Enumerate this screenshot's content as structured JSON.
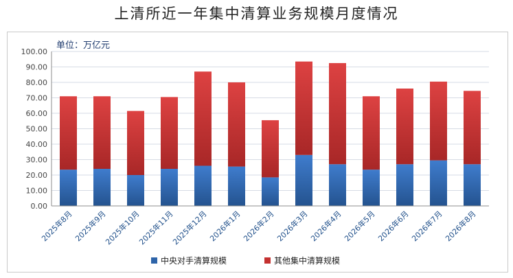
{
  "chart_data": {
    "type": "bar",
    "stacked": true,
    "title": "上清所近一年集中清算业务规模月度情况",
    "unit_label": "单位：万亿元",
    "categories": [
      "2025年8月",
      "2025年9月",
      "2025年10月",
      "2025年11月",
      "2025年12月",
      "2026年1月",
      "2026年2月",
      "2026年3月",
      "2026年4月",
      "2026年5月",
      "2026年6月",
      "2026年7月",
      "2026年8月"
    ],
    "series": [
      {
        "name": "中央对手清算规模",
        "values": [
          23.5,
          24.0,
          20.0,
          24.0,
          26.0,
          25.5,
          18.5,
          33.0,
          27.0,
          23.5,
          27.0,
          29.5,
          27.0
        ],
        "color": "#2e64a9"
      },
      {
        "name": "其他集中清算规模",
        "values": [
          47.5,
          47.0,
          41.5,
          46.5,
          61.0,
          54.5,
          37.0,
          60.5,
          65.5,
          47.5,
          49.0,
          51.0,
          47.5
        ],
        "color": "#c43130"
      }
    ],
    "ylim": [
      0,
      100
    ],
    "yticks": [
      "0.00",
      "10.00",
      "20.00",
      "30.00",
      "40.00",
      "50.00",
      "60.00",
      "70.00",
      "80.00",
      "90.00",
      "100.00"
    ],
    "grid": true,
    "legend_position": "bottom"
  }
}
